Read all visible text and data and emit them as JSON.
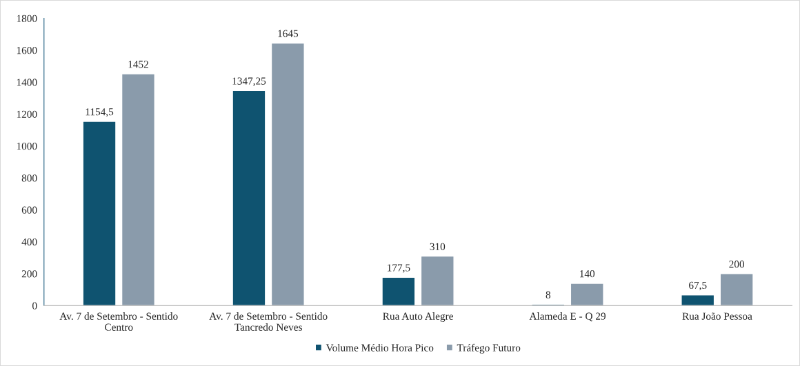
{
  "chart_data": {
    "type": "bar",
    "categories": [
      "Av. 7 de Setembro - Sentido\nCentro",
      "Av. 7 de Setembro - Sentido\nTancredo Neves",
      "Rua Auto Alegre",
      "Alameda E - Q 29",
      "Rua João Pessoa"
    ],
    "series": [
      {
        "name": "Volume Médio Hora Pico",
        "color": "#0f5370",
        "values": [
          1154.5,
          1347.25,
          177.5,
          8,
          67.5
        ],
        "value_labels": [
          "1154,5",
          "1347,25",
          "177,5",
          "8",
          "67,5"
        ]
      },
      {
        "name": "Tráfego Futuro",
        "color": "#8a9bab",
        "values": [
          1452,
          1645,
          310,
          140,
          200
        ],
        "value_labels": [
          "1452",
          "1645",
          "310",
          "140",
          "200"
        ]
      }
    ],
    "ylim": [
      0,
      1800
    ],
    "yticks": [
      0,
      200,
      400,
      600,
      800,
      1000,
      1200,
      1400,
      1600,
      1800
    ],
    "grid": false,
    "legend": "bottom"
  }
}
